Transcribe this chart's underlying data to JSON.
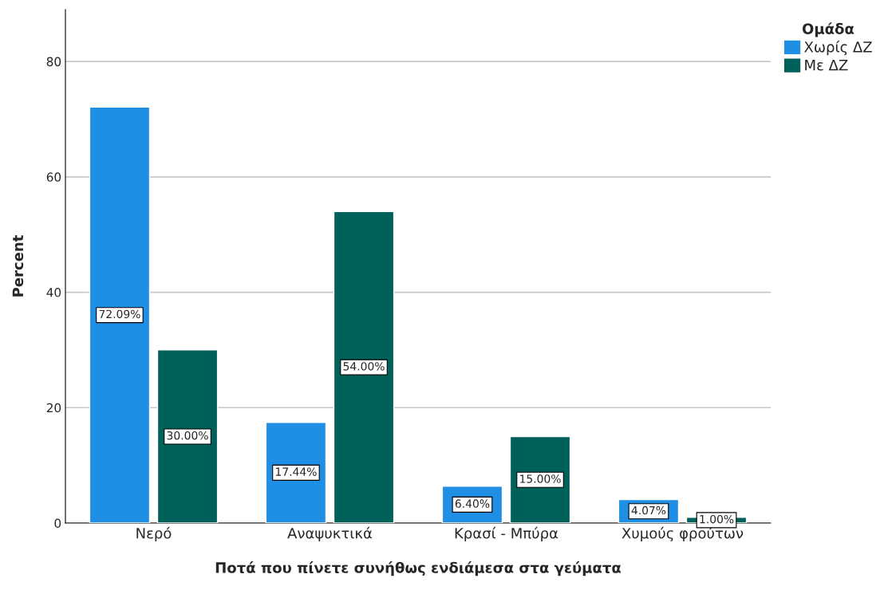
{
  "chart_data": {
    "type": "bar",
    "xlabel": "Ποτά που πίνετε συνήθως ενδιάμεσα στα γεύματα",
    "ylabel": "Percent",
    "legend_title": "Ομάδα",
    "categories": [
      "Νερό",
      "Αναψυκτικά",
      "Κρασί - Μπύρα",
      "Χυμούς φρούτων"
    ],
    "series": [
      {
        "name": "Χωρίς ΔΖ",
        "color": "#1f8fe5",
        "values": [
          72.09,
          17.44,
          6.4,
          4.07
        ],
        "value_labels": [
          "72.09%",
          "17.44%",
          "6.40%",
          "4.07%"
        ]
      },
      {
        "name": "Με ΔΖ",
        "color": "#00605a",
        "values": [
          30.0,
          54.0,
          15.0,
          1.0
        ],
        "value_labels": [
          "30.00%",
          "54.00%",
          "15.00%",
          "1.00%"
        ]
      }
    ],
    "ylim": [
      0,
      89
    ],
    "yticks": [
      0,
      20,
      40,
      60,
      80
    ],
    "grid": "y",
    "legend": "top right"
  }
}
